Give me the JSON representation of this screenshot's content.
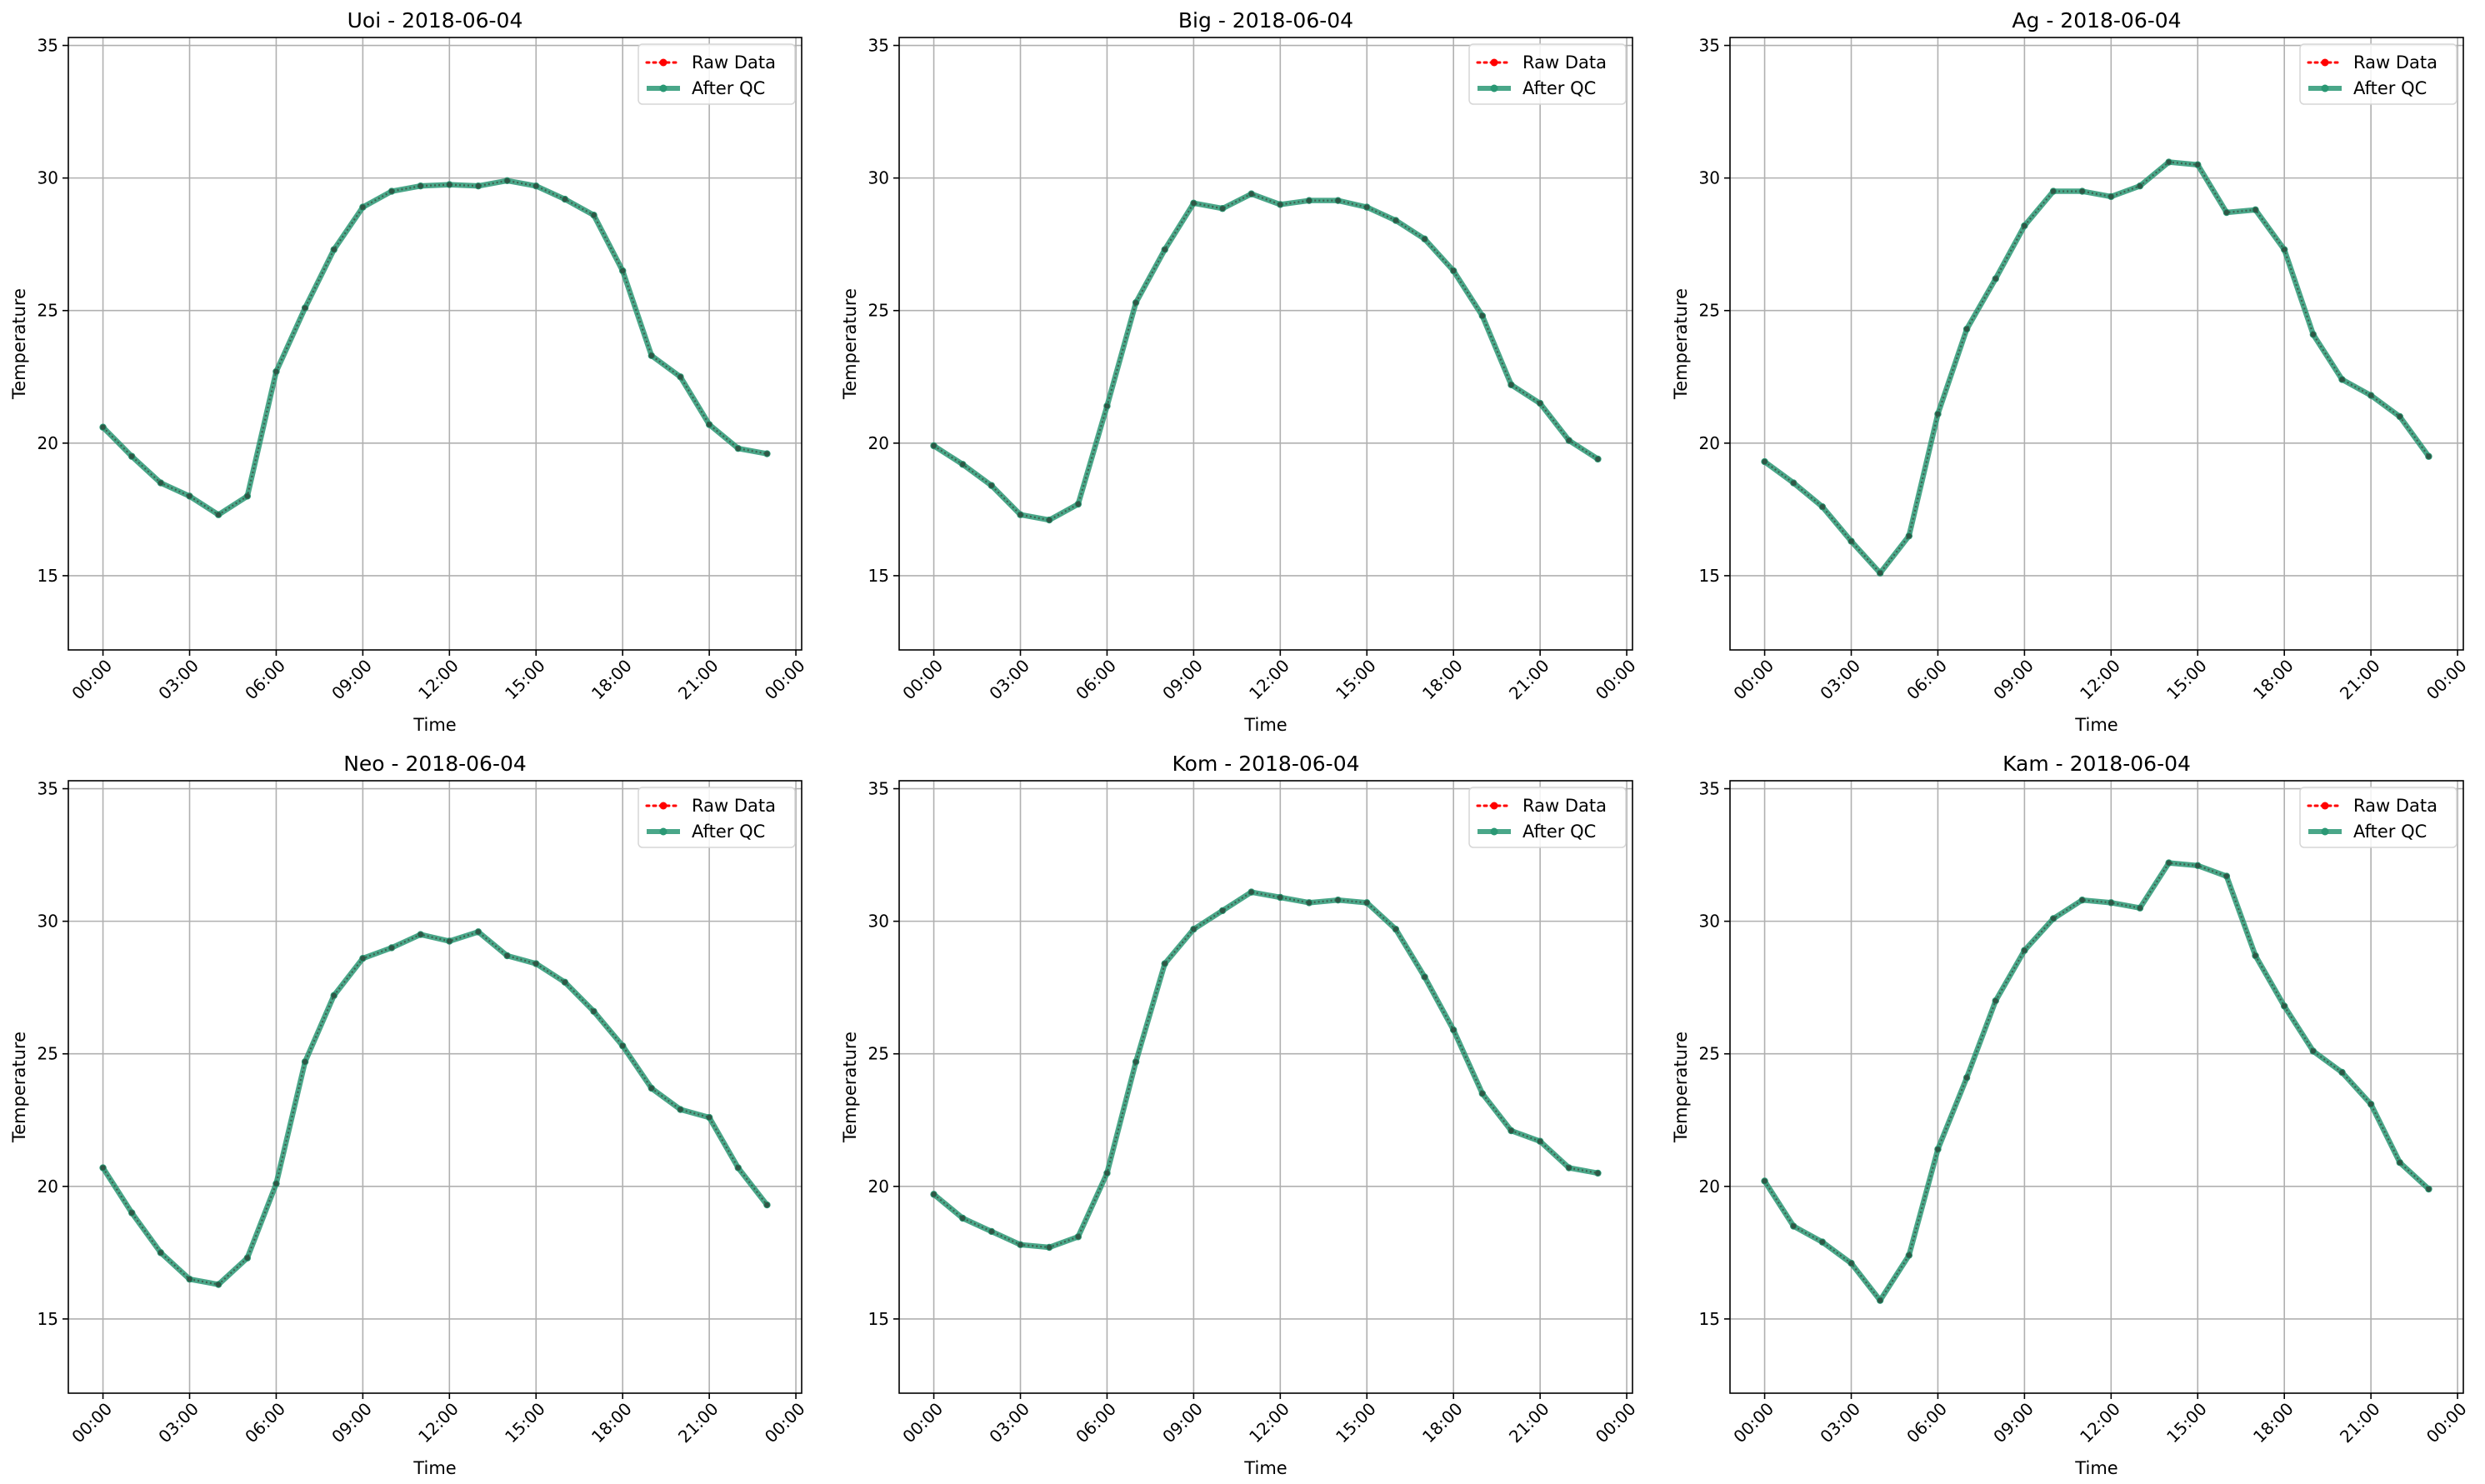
{
  "chart_data": [
    {
      "type": "line",
      "title": "Uoi - 2018-06-04",
      "xlabel": "Time",
      "ylabel": "Temperature",
      "x": [
        "00:00",
        "01:00",
        "02:00",
        "03:00",
        "04:00",
        "05:00",
        "06:00",
        "07:00",
        "08:00",
        "09:00",
        "10:00",
        "11:00",
        "12:00",
        "13:00",
        "14:00",
        "15:00",
        "16:00",
        "17:00",
        "18:00",
        "19:00",
        "20:00",
        "21:00",
        "22:00",
        "23:00"
      ],
      "x_ticks": [
        "00:00",
        "03:00",
        "06:00",
        "09:00",
        "12:00",
        "15:00",
        "18:00",
        "21:00",
        "00:00"
      ],
      "y_ticks": [
        15,
        20,
        25,
        30,
        35
      ],
      "ylim": [
        12.2,
        35.3
      ],
      "grid": true,
      "legend": "top-right",
      "series": [
        {
          "name": "Raw Data",
          "color": "#ff0000",
          "style": "dotted",
          "values": [
            20.6,
            19.5,
            18.5,
            18.0,
            17.3,
            18.0,
            22.7,
            25.1,
            27.3,
            28.9,
            29.5,
            29.7,
            29.75,
            29.7,
            29.9,
            29.7,
            29.2,
            28.6,
            26.5,
            23.3,
            22.5,
            20.7,
            19.8,
            19.6
          ]
        },
        {
          "name": "After QC",
          "color": "#2a9874",
          "style": "solid",
          "values": [
            20.6,
            19.5,
            18.5,
            18.0,
            17.3,
            18.0,
            22.7,
            25.1,
            27.3,
            28.9,
            29.5,
            29.7,
            29.75,
            29.7,
            29.9,
            29.7,
            29.2,
            28.6,
            26.5,
            23.3,
            22.5,
            20.7,
            19.8,
            19.6
          ]
        }
      ]
    },
    {
      "type": "line",
      "title": "Big - 2018-06-04",
      "xlabel": "Time",
      "ylabel": "Temperature",
      "x": [
        "00:00",
        "01:00",
        "02:00",
        "03:00",
        "04:00",
        "05:00",
        "06:00",
        "07:00",
        "08:00",
        "09:00",
        "10:00",
        "11:00",
        "12:00",
        "13:00",
        "14:00",
        "15:00",
        "16:00",
        "17:00",
        "18:00",
        "19:00",
        "20:00",
        "21:00",
        "22:00",
        "23:00"
      ],
      "x_ticks": [
        "00:00",
        "03:00",
        "06:00",
        "09:00",
        "12:00",
        "15:00",
        "18:00",
        "21:00",
        "00:00"
      ],
      "y_ticks": [
        15,
        20,
        25,
        30,
        35
      ],
      "ylim": [
        12.2,
        35.3
      ],
      "grid": true,
      "legend": "top-right",
      "series": [
        {
          "name": "Raw Data",
          "color": "#ff0000",
          "style": "dotted",
          "values": [
            19.9,
            19.2,
            18.4,
            17.3,
            17.1,
            17.7,
            21.4,
            25.3,
            27.3,
            29.05,
            28.85,
            29.4,
            29.0,
            29.15,
            29.15,
            28.9,
            28.4,
            27.7,
            26.5,
            24.8,
            22.2,
            21.5,
            20.1,
            19.4
          ]
        },
        {
          "name": "After QC",
          "color": "#2a9874",
          "style": "solid",
          "values": [
            19.9,
            19.2,
            18.4,
            17.3,
            17.1,
            17.7,
            21.4,
            25.3,
            27.3,
            29.05,
            28.85,
            29.4,
            29.0,
            29.15,
            29.15,
            28.9,
            28.4,
            27.7,
            26.5,
            24.8,
            22.2,
            21.5,
            20.1,
            19.4
          ]
        }
      ]
    },
    {
      "type": "line",
      "title": "Ag - 2018-06-04",
      "xlabel": "Time",
      "ylabel": "Temperature",
      "x": [
        "00:00",
        "01:00",
        "02:00",
        "03:00",
        "04:00",
        "05:00",
        "06:00",
        "07:00",
        "08:00",
        "09:00",
        "10:00",
        "11:00",
        "12:00",
        "13:00",
        "14:00",
        "15:00",
        "16:00",
        "17:00",
        "18:00",
        "19:00",
        "20:00",
        "21:00",
        "22:00",
        "23:00"
      ],
      "x_ticks": [
        "00:00",
        "03:00",
        "06:00",
        "09:00",
        "12:00",
        "15:00",
        "18:00",
        "21:00",
        "00:00"
      ],
      "y_ticks": [
        15,
        20,
        25,
        30,
        35
      ],
      "ylim": [
        12.2,
        35.3
      ],
      "grid": true,
      "legend": "top-right",
      "series": [
        {
          "name": "Raw Data",
          "color": "#ff0000",
          "style": "dotted",
          "values": [
            19.3,
            18.5,
            17.6,
            16.3,
            15.1,
            16.5,
            21.1,
            24.3,
            26.2,
            28.2,
            29.5,
            29.5,
            29.3,
            29.7,
            30.6,
            30.5,
            28.7,
            28.8,
            27.3,
            24.1,
            22.4,
            21.8,
            21.0,
            19.5
          ]
        },
        {
          "name": "After QC",
          "color": "#2a9874",
          "style": "solid",
          "values": [
            19.3,
            18.5,
            17.6,
            16.3,
            15.1,
            16.5,
            21.1,
            24.3,
            26.2,
            28.2,
            29.5,
            29.5,
            29.3,
            29.7,
            30.6,
            30.5,
            28.7,
            28.8,
            27.3,
            24.1,
            22.4,
            21.8,
            21.0,
            19.5
          ]
        }
      ]
    },
    {
      "type": "line",
      "title": "Neo - 2018-06-04",
      "xlabel": "Time",
      "ylabel": "Temperature",
      "x": [
        "00:00",
        "01:00",
        "02:00",
        "03:00",
        "04:00",
        "05:00",
        "06:00",
        "07:00",
        "08:00",
        "09:00",
        "10:00",
        "11:00",
        "12:00",
        "13:00",
        "14:00",
        "15:00",
        "16:00",
        "17:00",
        "18:00",
        "19:00",
        "20:00",
        "21:00",
        "22:00",
        "23:00"
      ],
      "x_ticks": [
        "00:00",
        "03:00",
        "06:00",
        "09:00",
        "12:00",
        "15:00",
        "18:00",
        "21:00",
        "00:00"
      ],
      "y_ticks": [
        15,
        20,
        25,
        30,
        35
      ],
      "ylim": [
        12.2,
        35.3
      ],
      "grid": true,
      "legend": "top-right",
      "series": [
        {
          "name": "Raw Data",
          "color": "#ff0000",
          "style": "dotted",
          "values": [
            20.7,
            19.0,
            17.5,
            16.5,
            16.3,
            17.3,
            20.1,
            24.7,
            27.2,
            28.6,
            29.0,
            29.5,
            29.25,
            29.6,
            28.7,
            28.4,
            27.7,
            26.6,
            25.3,
            23.7,
            22.9,
            22.6,
            20.7,
            19.3
          ]
        },
        {
          "name": "After QC",
          "color": "#2a9874",
          "style": "solid",
          "values": [
            20.7,
            19.0,
            17.5,
            16.5,
            16.3,
            17.3,
            20.1,
            24.7,
            27.2,
            28.6,
            29.0,
            29.5,
            29.25,
            29.6,
            28.7,
            28.4,
            27.7,
            26.6,
            25.3,
            23.7,
            22.9,
            22.6,
            20.7,
            19.3
          ]
        }
      ]
    },
    {
      "type": "line",
      "title": "Kom - 2018-06-04",
      "xlabel": "Time",
      "ylabel": "Temperature",
      "x": [
        "00:00",
        "01:00",
        "02:00",
        "03:00",
        "04:00",
        "05:00",
        "06:00",
        "07:00",
        "08:00",
        "09:00",
        "10:00",
        "11:00",
        "12:00",
        "13:00",
        "14:00",
        "15:00",
        "16:00",
        "17:00",
        "18:00",
        "19:00",
        "20:00",
        "21:00",
        "22:00",
        "23:00"
      ],
      "x_ticks": [
        "00:00",
        "03:00",
        "06:00",
        "09:00",
        "12:00",
        "15:00",
        "18:00",
        "21:00",
        "00:00"
      ],
      "y_ticks": [
        15,
        20,
        25,
        30,
        35
      ],
      "ylim": [
        12.2,
        35.3
      ],
      "grid": true,
      "legend": "top-right",
      "series": [
        {
          "name": "Raw Data",
          "color": "#ff0000",
          "style": "dotted",
          "values": [
            19.7,
            18.8,
            18.3,
            17.8,
            17.7,
            18.1,
            20.5,
            24.7,
            28.4,
            29.7,
            30.4,
            31.1,
            30.9,
            30.7,
            30.8,
            30.7,
            29.7,
            27.9,
            25.9,
            23.5,
            22.1,
            21.7,
            20.7,
            20.5
          ]
        },
        {
          "name": "After QC",
          "color": "#2a9874",
          "style": "solid",
          "values": [
            19.7,
            18.8,
            18.3,
            17.8,
            17.7,
            18.1,
            20.5,
            24.7,
            28.4,
            29.7,
            30.4,
            31.1,
            30.9,
            30.7,
            30.8,
            30.7,
            29.7,
            27.9,
            25.9,
            23.5,
            22.1,
            21.7,
            20.7,
            20.5
          ]
        }
      ]
    },
    {
      "type": "line",
      "title": "Kam - 2018-06-04",
      "xlabel": "Time",
      "ylabel": "Temperature",
      "x": [
        "00:00",
        "01:00",
        "02:00",
        "03:00",
        "04:00",
        "05:00",
        "06:00",
        "07:00",
        "08:00",
        "09:00",
        "10:00",
        "11:00",
        "12:00",
        "13:00",
        "14:00",
        "15:00",
        "16:00",
        "17:00",
        "18:00",
        "19:00",
        "20:00",
        "21:00",
        "22:00",
        "23:00"
      ],
      "x_ticks": [
        "00:00",
        "03:00",
        "06:00",
        "09:00",
        "12:00",
        "15:00",
        "18:00",
        "21:00",
        "00:00"
      ],
      "y_ticks": [
        15,
        20,
        25,
        30,
        35
      ],
      "ylim": [
        12.2,
        35.3
      ],
      "grid": true,
      "legend": "top-right",
      "series": [
        {
          "name": "Raw Data",
          "color": "#ff0000",
          "style": "dotted",
          "values": [
            20.2,
            18.5,
            17.9,
            17.1,
            15.7,
            17.4,
            21.4,
            24.1,
            27.0,
            28.9,
            30.1,
            30.8,
            30.7,
            30.5,
            32.2,
            32.1,
            31.7,
            28.7,
            26.8,
            25.1,
            24.3,
            23.1,
            20.9,
            19.9
          ]
        },
        {
          "name": "After QC",
          "color": "#2a9874",
          "style": "solid",
          "values": [
            20.2,
            18.5,
            17.9,
            17.1,
            15.7,
            17.4,
            21.4,
            24.1,
            27.0,
            28.9,
            30.1,
            30.8,
            30.7,
            30.5,
            32.2,
            32.1,
            31.7,
            28.7,
            26.8,
            25.1,
            24.3,
            23.1,
            20.9,
            19.9
          ]
        }
      ]
    }
  ]
}
